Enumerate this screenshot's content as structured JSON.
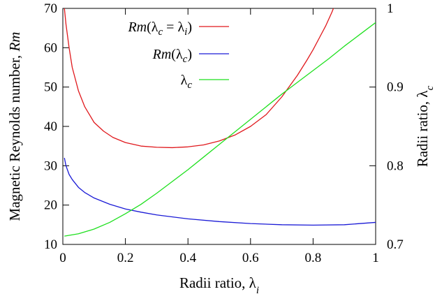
{
  "chart_data": {
    "type": "line",
    "xlabel": "Radii ratio, λ",
    "xlabel_sub": "i",
    "ylabel": "Magnetic Reynolds number, ",
    "ylabel_italic": "Rm",
    "y2label": "Radii ratio, λ",
    "y2label_sub": "c",
    "xlim": [
      0,
      1
    ],
    "ylim": [
      10,
      70
    ],
    "y2lim": [
      0.7,
      1.0
    ],
    "xticks": [
      "0",
      "0.2",
      "0.4",
      "0.6",
      "0.8",
      "1"
    ],
    "xtick_values": [
      0,
      0.2,
      0.4,
      0.6,
      0.8,
      1
    ],
    "yticks": [
      "10",
      "20",
      "30",
      "40",
      "50",
      "60",
      "70"
    ],
    "ytick_values": [
      10,
      20,
      30,
      40,
      50,
      60,
      70
    ],
    "y2ticks": [
      "0.7",
      "0.8",
      "0.9",
      "1"
    ],
    "y2tick_values": [
      0.7,
      0.8,
      0.9,
      1.0
    ],
    "grid": false,
    "legend_position": "top-left",
    "series": [
      {
        "name": "Rm(λc = λi)",
        "color": "#e0181c",
        "axis": "left",
        "x": [
          0.005,
          0.01,
          0.02,
          0.03,
          0.05,
          0.07,
          0.1,
          0.13,
          0.16,
          0.2,
          0.25,
          0.3,
          0.35,
          0.4,
          0.45,
          0.5,
          0.55,
          0.6,
          0.65,
          0.7,
          0.75,
          0.78,
          0.8,
          0.82,
          0.84,
          0.86,
          0.88,
          0.9
        ],
        "y": [
          70,
          66,
          60,
          55,
          49,
          45,
          41,
          38.8,
          37.2,
          35.9,
          35.0,
          34.7,
          34.6,
          34.8,
          35.3,
          36.3,
          37.8,
          40.0,
          43.0,
          47.5,
          53.0,
          56.8,
          59.5,
          62.5,
          65.5,
          69.0,
          73,
          78
        ]
      },
      {
        "name": "Rm(λc)",
        "color": "#1a1ad6",
        "axis": "left",
        "x": [
          0.005,
          0.01,
          0.02,
          0.03,
          0.05,
          0.07,
          0.1,
          0.15,
          0.2,
          0.25,
          0.3,
          0.4,
          0.5,
          0.6,
          0.7,
          0.8,
          0.9,
          1.0
        ],
        "y": [
          32,
          30,
          27.8,
          26.5,
          24.5,
          23.2,
          21.8,
          20.2,
          19.0,
          18.2,
          17.5,
          16.5,
          15.8,
          15.3,
          15.0,
          14.9,
          15.0,
          15.6
        ]
      },
      {
        "name": "λc",
        "color": "#1fe01f",
        "axis": "right",
        "x": [
          0.005,
          0.05,
          0.1,
          0.15,
          0.2,
          0.25,
          0.3,
          0.35,
          0.4,
          0.45,
          0.5,
          0.55,
          0.6,
          0.65,
          0.7,
          0.75,
          0.8,
          0.85,
          0.9,
          0.95,
          1.0
        ],
        "y": [
          0.7105,
          0.7135,
          0.7195,
          0.728,
          0.739,
          0.751,
          0.765,
          0.78,
          0.795,
          0.811,
          0.827,
          0.843,
          0.859,
          0.875,
          0.891,
          0.906,
          0.921,
          0.936,
          0.952,
          0.967,
          0.982
        ]
      }
    ],
    "legend": [
      {
        "parts": [
          [
            "Rm",
            "i"
          ],
          [
            "(λ",
            ""
          ],
          [
            "c",
            "sub"
          ],
          [
            " = λ",
            ""
          ],
          [
            "i",
            "sub"
          ],
          [
            ")",
            ""
          ]
        ],
        "color": "#e0181c"
      },
      {
        "parts": [
          [
            "Rm",
            "i"
          ],
          [
            "(λ",
            ""
          ],
          [
            "c",
            "sub"
          ],
          [
            ")",
            ""
          ]
        ],
        "color": "#1a1ad6"
      },
      {
        "parts": [
          [
            "λ",
            ""
          ],
          [
            "c",
            "sub"
          ]
        ],
        "color": "#1fe01f"
      }
    ]
  }
}
